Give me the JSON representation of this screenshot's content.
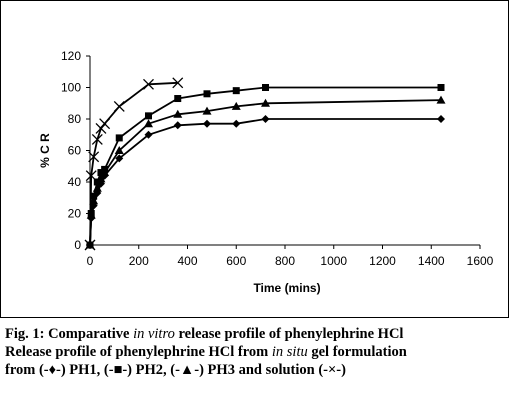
{
  "chart_data": {
    "type": "line",
    "xlabel": "Time  (mins)",
    "ylabel": "% C R",
    "xlim": [
      0,
      1600
    ],
    "ylim": [
      0,
      120
    ],
    "xticks": [
      "0",
      "200",
      "400",
      "600",
      "800",
      "1000",
      "1200",
      "1400",
      "1600"
    ],
    "yticks": [
      "0",
      "20",
      "40",
      "60",
      "80",
      "100",
      "120"
    ],
    "grid": false,
    "series": [
      {
        "marker": "diamond",
        "x": [
          0,
          5,
          15,
          30,
          45,
          60,
          120,
          240,
          360,
          480,
          600,
          720,
          1440
        ],
        "y": [
          0,
          17,
          25,
          33,
          39,
          44,
          55,
          70,
          76,
          77,
          77,
          80,
          80
        ]
      },
      {
        "marker": "square",
        "x": [
          0,
          5,
          15,
          30,
          45,
          60,
          120,
          240,
          360,
          480,
          600,
          720,
          1440
        ],
        "y": [
          0,
          20,
          31,
          40,
          46,
          48,
          68,
          82,
          93,
          96,
          98,
          100,
          100
        ]
      },
      {
        "marker": "triangle",
        "x": [
          0,
          5,
          15,
          30,
          45,
          60,
          120,
          240,
          360,
          480,
          600,
          720,
          1440
        ],
        "y": [
          0,
          19,
          28,
          36,
          42,
          46,
          60,
          77,
          83,
          85,
          88,
          90,
          92
        ]
      },
      {
        "marker": "x",
        "x": [
          0,
          5,
          15,
          30,
          45,
          60,
          120,
          240,
          360
        ],
        "y": [
          0,
          44,
          56,
          67,
          74,
          77,
          88,
          102,
          103
        ]
      }
    ],
    "line_color": "#000000"
  },
  "caption": {
    "line1_a": "Fig. 1: Comparative ",
    "line1_i": "in vitro",
    "line1_b": " release profile of phenylephrine HCl",
    "line2_a": "Release profile of phenylephrine HCl from ",
    "line2_i": "in situ",
    "line2_b": " gel formulation",
    "line3": "from (-♦-) PH1, (-■-) PH2, (-▲-) PH3 and solution (-×-)"
  }
}
